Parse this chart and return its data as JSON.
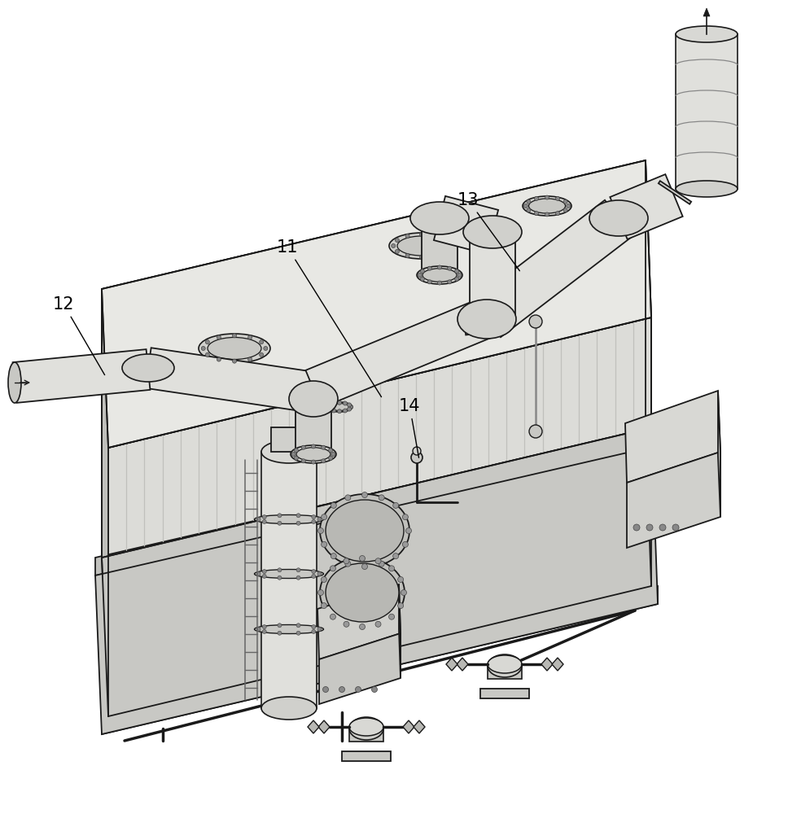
{
  "bg_color": "#ffffff",
  "lc": "#1a1a1a",
  "fill_top": "#e8e8e4",
  "fill_left": "#d4d4d0",
  "fill_right": "#dcdcd8",
  "fill_base": "#c8c8c4",
  "stripe_color": "#c0c0bc",
  "pipe_light": "#e0e0dc",
  "pipe_mid": "#d0d0cc",
  "pipe_dark": "#b8b8b4",
  "box_gray": "#d0d0cc",
  "label_fs": 15
}
